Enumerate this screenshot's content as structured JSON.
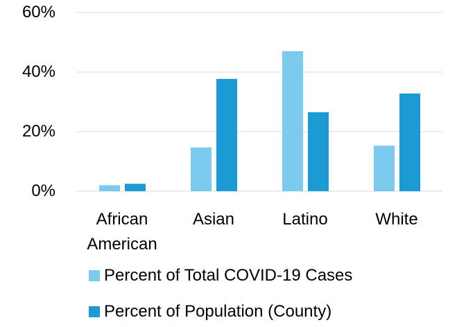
{
  "chart_data": {
    "type": "bar",
    "categories": [
      "African American",
      "Asian",
      "Latino",
      "White"
    ],
    "series": [
      {
        "name": "Percent of Total COVID-19 Cases",
        "color": "#7ccbee",
        "values": [
          2,
          14.7,
          47,
          15.3
        ]
      },
      {
        "name": "Percent of Population (County)",
        "color": "#1b9ad3",
        "values": [
          2.5,
          37.7,
          26.5,
          32.8
        ]
      }
    ],
    "ylim": [
      0,
      60
    ],
    "yticks": [
      {
        "value": 0,
        "label": "0%"
      },
      {
        "value": 20,
        "label": "20%"
      },
      {
        "value": 40,
        "label": "40%"
      },
      {
        "value": 60,
        "label": "60%"
      }
    ],
    "grid": true,
    "legend": "bottom"
  }
}
